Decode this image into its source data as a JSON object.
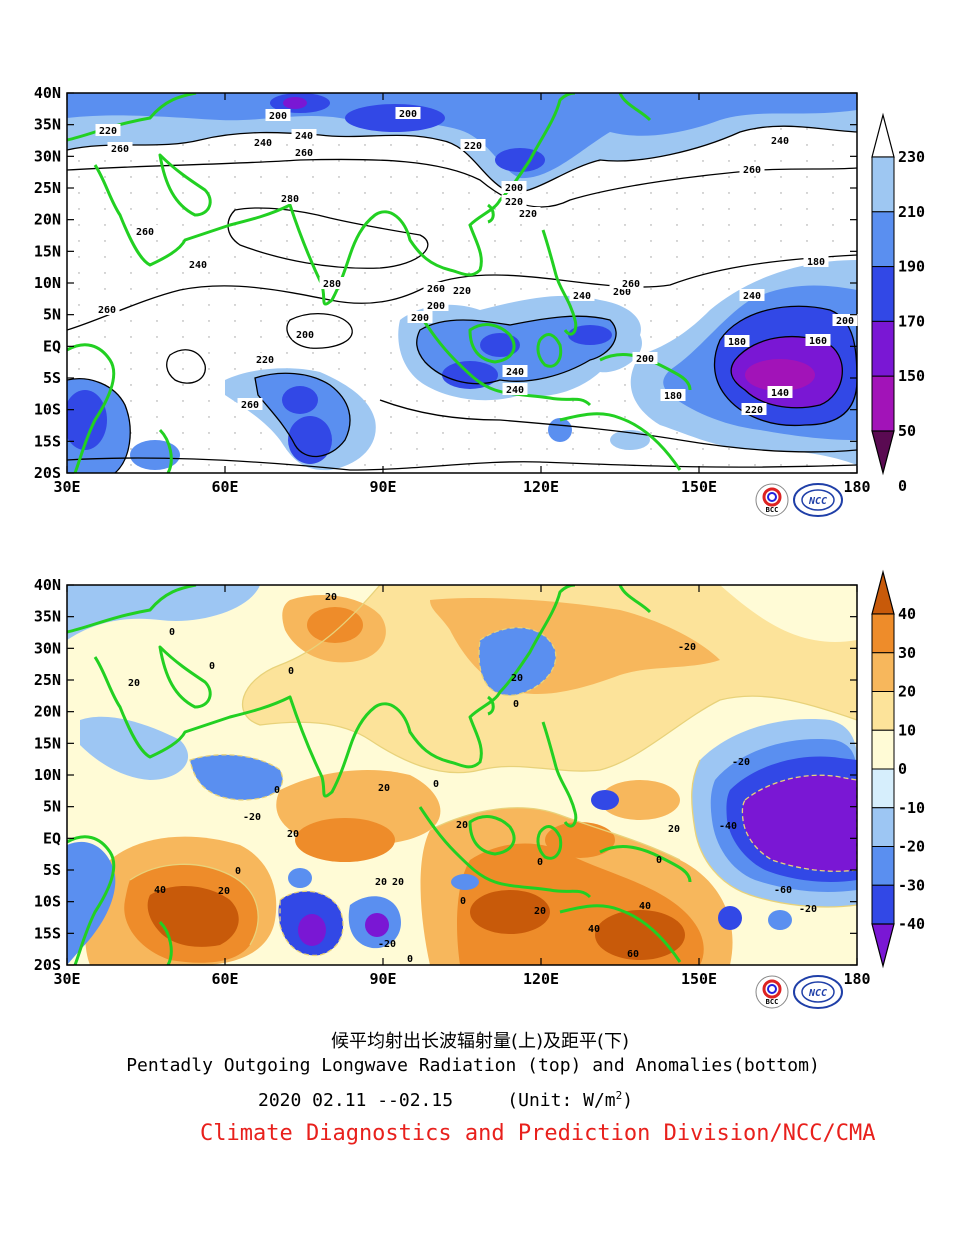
{
  "top_map": {
    "lon_labels": [
      "30E",
      "60E",
      "90E",
      "120E",
      "150E",
      "180"
    ],
    "lat_labels": [
      "40N",
      "35N",
      "30N",
      "25N",
      "20N",
      "15N",
      "10N",
      "5N",
      "EQ",
      "5S",
      "10S",
      "15S",
      "20S"
    ],
    "colorbar": {
      "labels": [
        "230",
        "210",
        "190",
        "170",
        "150",
        "50",
        "0"
      ],
      "colors": [
        "#ffffff",
        "#9ec7f2",
        "#5a8ff0",
        "#3248e6",
        "#7a17d4",
        "#a213b8",
        "#5a0a52"
      ]
    },
    "contour_labels": [
      "200",
      "200",
      "220",
      "220",
      "240",
      "240",
      "260",
      "260",
      "280",
      "280",
      "260",
      "260",
      "200",
      "220",
      "220",
      "240",
      "260",
      "240",
      "200",
      "180",
      "160",
      "140",
      "180",
      "200",
      "220",
      "240",
      "260",
      "220",
      "200",
      "200",
      "220",
      "240",
      "260",
      "260",
      "240",
      "180",
      "200",
      "240",
      "260"
    ]
  },
  "bottom_map": {
    "lon_labels": [
      "30E",
      "60E",
      "90E",
      "120E",
      "150E",
      "180"
    ],
    "lat_labels": [
      "40N",
      "35N",
      "30N",
      "25N",
      "20N",
      "15N",
      "10N",
      "5N",
      "EQ",
      "5S",
      "10S",
      "15S",
      "20S"
    ],
    "colorbar": {
      "labels": [
        "40",
        "30",
        "20",
        "10",
        "0",
        "-10",
        "-20",
        "-30",
        "-40"
      ],
      "colors": [
        "#c85a0a",
        "#ee8c2a",
        "#f7b75c",
        "#fce39a",
        "#fffbd6",
        "#d6eefc",
        "#9dc6f3",
        "#5a8ff0",
        "#3248e6",
        "#7a17d4"
      ]
    },
    "contour_labels": [
      "20",
      "0",
      "0",
      "0",
      "20",
      "-20",
      "0",
      "20",
      "0",
      "-20",
      "0",
      "20",
      "20",
      "20",
      "20",
      "-40",
      "0",
      "-60",
      "-20",
      "0",
      "40",
      "20",
      "20",
      "0",
      "-20",
      "40",
      "40",
      "60",
      "20",
      "0",
      "-20",
      "0",
      "20"
    ]
  },
  "logos": {
    "bcc_text": "BCC",
    "ncc_text": "NCC"
  },
  "captions": {
    "chinese_title": "候平均射出长波辐射量(上)及距平(下)",
    "english_title": "Pentadly Outgoing Longwave Radiation (top) and Anomalies(bottom)",
    "date_range": "2020  02.11 --02.15",
    "unit_prefix": "(Unit: W/m",
    "unit_sup": "2",
    "unit_suffix": ")",
    "organization": "Climate Diagnostics and Prediction Division/NCC/CMA"
  },
  "colors": {
    "coastline": "#22d022",
    "contour": "#000000",
    "anomaly_contour": "#e8d27a",
    "organization_text": "#e8201c"
  }
}
